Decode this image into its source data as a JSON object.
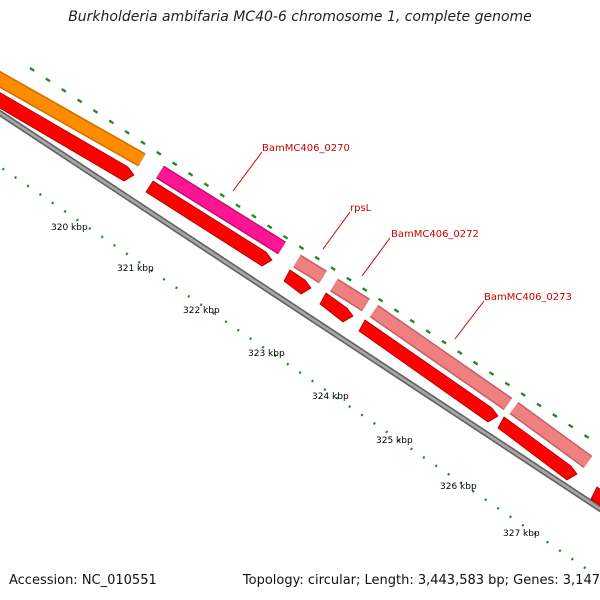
{
  "title": "Burkholderia ambifaria MC40-6 chromosome 1, complete genome",
  "footer": {
    "accession": "Accession: NC_010551",
    "summary": "Topology: circular; Length: 3,443,583 bp; Genes: 3,147"
  },
  "scale": {
    "tick_labels": [
      "320 kbp",
      "321 kbp",
      "322 kbp",
      "323 kbp",
      "324 kbp",
      "325 kbp",
      "326 kbp",
      "327 kbp"
    ]
  },
  "gene_labels": [
    "BamMC406_0270",
    "rpsL",
    "BamMC406_0272",
    "BamMC406_0273"
  ],
  "colors": {
    "cds_red": "#ff0000",
    "gene_orange": "#ff8c00",
    "gene_magenta": "#ff1493",
    "gene_pink": "#f08080",
    "backbone_gray": "#808080",
    "tick_green": "#228b22",
    "label_red": "#cc0000"
  }
}
